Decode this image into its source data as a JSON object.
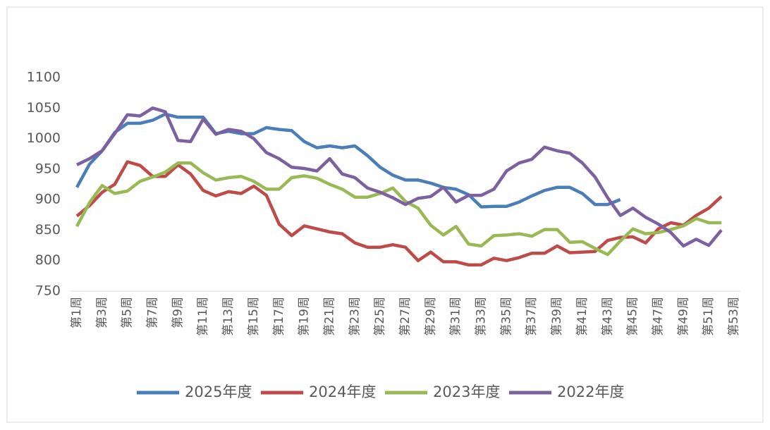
{
  "chart_data": {
    "type": "line",
    "categories": [
      "第1周",
      null,
      "第3周",
      null,
      "第5周",
      null,
      "第7周",
      null,
      "第9周",
      null,
      "第11周",
      null,
      "第13周",
      null,
      "第15周",
      null,
      "第17周",
      null,
      "第19周",
      null,
      "第21周",
      null,
      "第23周",
      null,
      "第25周",
      null,
      "第27周",
      null,
      "第29周",
      null,
      "第31周",
      null,
      "第33周",
      null,
      "第35周",
      null,
      "第37周",
      null,
      "第39周",
      null,
      "第41周",
      null,
      "第43周",
      null,
      "第45周",
      null,
      "第47周",
      null,
      "第49周",
      null,
      "第51周",
      null,
      "第53周"
    ],
    "series": [
      {
        "name": "2025年度",
        "color": "#4a7ebb",
        "values": [
          920,
          958,
          980,
          1010,
          1025,
          1025,
          1030,
          1040,
          1035,
          1035,
          1035,
          1008,
          1012,
          1008,
          1008,
          1018,
          1015,
          1013,
          995,
          985,
          988,
          985,
          988,
          972,
          953,
          940,
          932,
          932,
          927,
          920,
          917,
          908,
          888,
          889,
          889,
          896,
          906,
          915,
          920,
          920,
          910,
          892,
          892,
          900,
          null,
          null,
          null,
          null,
          null,
          null,
          null,
          null,
          null
        ]
      },
      {
        "name": "2024年度",
        "color": "#be4b48",
        "values": [
          873,
          890,
          912,
          925,
          962,
          956,
          938,
          938,
          957,
          942,
          915,
          906,
          913,
          910,
          922,
          907,
          860,
          841,
          857,
          852,
          847,
          844,
          829,
          822,
          822,
          826,
          822,
          800,
          814,
          798,
          798,
          793,
          793,
          804,
          800,
          805,
          812,
          812,
          824,
          813,
          814,
          815,
          833,
          838,
          839,
          829,
          852,
          862,
          858,
          874,
          886,
          905,
          null
        ]
      },
      {
        "name": "2023年度",
        "color": "#98b954",
        "values": [
          856,
          895,
          923,
          910,
          914,
          930,
          937,
          945,
          960,
          960,
          944,
          932,
          936,
          938,
          930,
          917,
          917,
          936,
          939,
          935,
          925,
          917,
          904,
          904,
          910,
          919,
          897,
          886,
          858,
          842,
          856,
          827,
          824,
          841,
          842,
          844,
          840,
          851,
          851,
          830,
          831,
          820,
          810,
          832,
          852,
          844,
          846,
          851,
          857,
          869,
          862,
          862,
          null
        ]
      },
      {
        "name": "2022年度",
        "color": "#7d60a0",
        "values": [
          957,
          967,
          980,
          1008,
          1039,
          1037,
          1050,
          1044,
          997,
          995,
          1032,
          1007,
          1015,
          1012,
          1000,
          977,
          967,
          953,
          951,
          947,
          967,
          942,
          936,
          919,
          912,
          903,
          892,
          902,
          905,
          920,
          896,
          907,
          907,
          917,
          947,
          960,
          966,
          986,
          980,
          976,
          960,
          937,
          903,
          874,
          886,
          871,
          860,
          846,
          824,
          835,
          825,
          850,
          null
        ]
      }
    ],
    "ylim": [
      750,
      1100
    ],
    "yticks": [
      750,
      800,
      850,
      900,
      950,
      1000,
      1050,
      1100
    ],
    "grid": false,
    "legend": "bottom"
  }
}
